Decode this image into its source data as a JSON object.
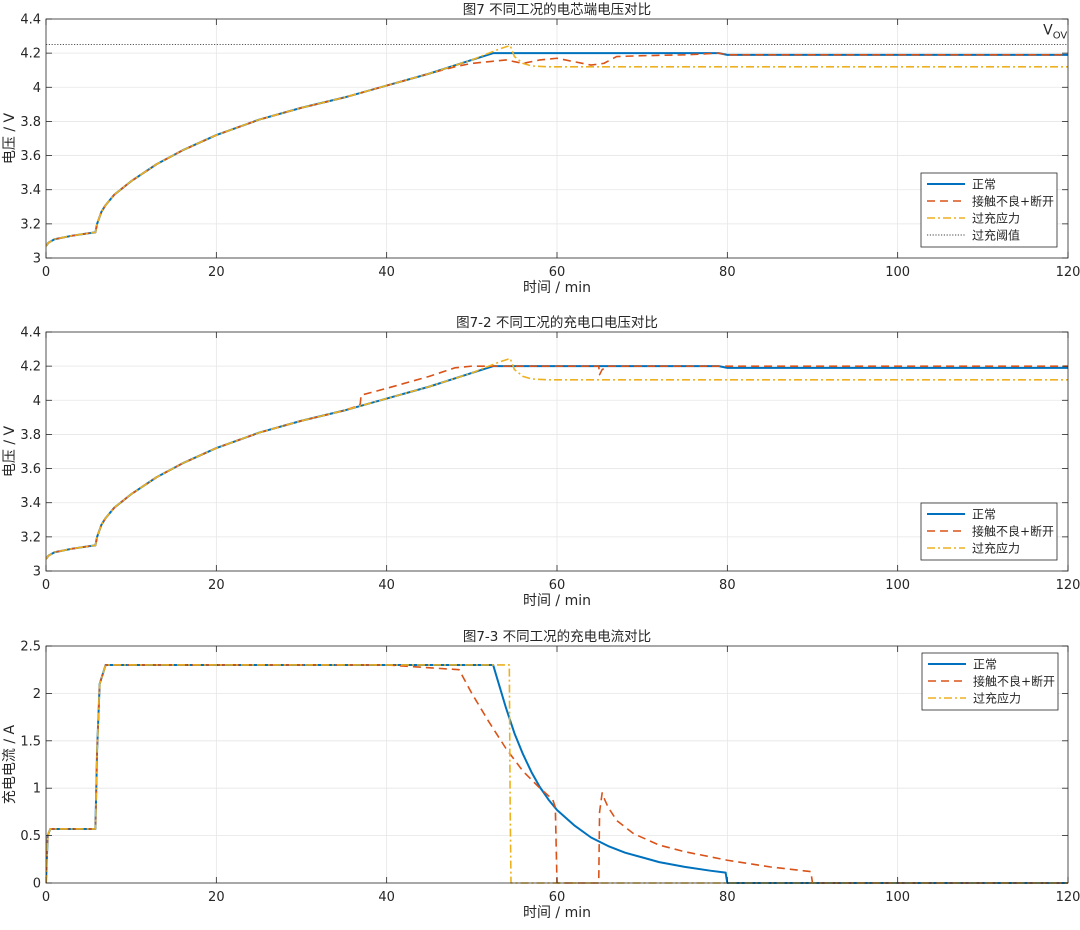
{
  "chart_data": [
    {
      "type": "line",
      "title": "图7 不同工况的电芯端电压对比",
      "xlabel": "时间 / min",
      "ylabel": "电压 / V",
      "xlim": [
        0,
        120
      ],
      "ylim": [
        3,
        4.4
      ],
      "xticks": [
        0,
        20,
        40,
        60,
        80,
        100,
        120
      ],
      "yticks": [
        3,
        3.2,
        3.4,
        3.6,
        3.8,
        4,
        4.2,
        4.4
      ],
      "ytick_labels": [
        "3",
        "3.2",
        "3.4",
        "3.6",
        "3.8",
        "4",
        "4.2",
        "4.4"
      ],
      "grid": true,
      "legend_position": "lower-right",
      "annotation": {
        "text_main": "V",
        "text_sub": "OV",
        "x": 118.5,
        "y": 4.31
      },
      "series": [
        {
          "name": "正常",
          "color": "#0072BD",
          "style": "solid",
          "x": [
            0,
            0.3,
            1,
            3,
            5,
            5.8,
            6,
            6.5,
            7,
            8,
            10,
            13,
            16,
            20,
            25,
            30,
            35,
            40,
            45,
            50,
            52.5,
            53,
            60,
            70,
            79,
            80,
            90,
            100,
            110,
            120
          ],
          "y": [
            3.07,
            3.09,
            3.11,
            3.13,
            3.145,
            3.15,
            3.2,
            3.27,
            3.31,
            3.37,
            3.45,
            3.55,
            3.63,
            3.72,
            3.81,
            3.88,
            3.94,
            4.01,
            4.08,
            4.16,
            4.2,
            4.2,
            4.2,
            4.2,
            4.2,
            4.19,
            4.19,
            4.19,
            4.19,
            4.19
          ]
        },
        {
          "name": "接触不良+断开",
          "color": "#D95319",
          "style": "dash",
          "x": [
            0,
            0.3,
            1,
            3,
            5,
            5.8,
            6,
            6.5,
            7,
            8,
            10,
            13,
            16,
            20,
            25,
            30,
            35,
            40,
            45,
            48,
            50,
            52,
            54,
            55,
            56,
            58,
            60,
            62,
            64,
            65.5,
            67,
            70,
            75,
            79,
            80,
            90,
            100,
            110,
            120
          ],
          "y": [
            3.07,
            3.09,
            3.11,
            3.13,
            3.145,
            3.15,
            3.2,
            3.27,
            3.31,
            3.37,
            3.45,
            3.55,
            3.63,
            3.72,
            3.81,
            3.88,
            3.94,
            4.01,
            4.08,
            4.12,
            4.14,
            4.15,
            4.16,
            4.15,
            4.14,
            4.16,
            4.17,
            4.15,
            4.13,
            4.14,
            4.18,
            4.185,
            4.19,
            4.2,
            4.19,
            4.19,
            4.19,
            4.19,
            4.19
          ]
        },
        {
          "name": "过充应力",
          "color": "#EDB120",
          "style": "dashdot",
          "x": [
            0,
            0.3,
            1,
            3,
            5,
            5.8,
            6,
            6.5,
            7,
            8,
            10,
            13,
            16,
            20,
            25,
            30,
            35,
            40,
            45,
            50,
            53,
            54.5,
            55,
            56,
            57,
            59,
            62,
            70,
            80,
            90,
            100,
            110,
            120
          ],
          "y": [
            3.07,
            3.09,
            3.11,
            3.13,
            3.145,
            3.15,
            3.2,
            3.27,
            3.31,
            3.37,
            3.45,
            3.55,
            3.63,
            3.72,
            3.81,
            3.88,
            3.94,
            4.01,
            4.08,
            4.16,
            4.22,
            4.245,
            4.18,
            4.14,
            4.125,
            4.12,
            4.12,
            4.12,
            4.12,
            4.12,
            4.12,
            4.12,
            4.12
          ]
        },
        {
          "name": "过充阈值",
          "color": "#404040",
          "style": "dot",
          "x": [
            0,
            120
          ],
          "y": [
            4.25,
            4.25
          ]
        }
      ]
    },
    {
      "type": "line",
      "title": "图7-2 不同工况的充电口电压对比",
      "xlabel": "时间 / min",
      "ylabel": "电压 / V",
      "xlim": [
        0,
        120
      ],
      "ylim": [
        3,
        4.4
      ],
      "xticks": [
        0,
        20,
        40,
        60,
        80,
        100,
        120
      ],
      "yticks": [
        3,
        3.2,
        3.4,
        3.6,
        3.8,
        4,
        4.2,
        4.4
      ],
      "ytick_labels": [
        "3",
        "3.2",
        "3.4",
        "3.6",
        "3.8",
        "4",
        "4.2",
        "4.4"
      ],
      "grid": true,
      "legend_position": "lower-right",
      "series": [
        {
          "name": "正常",
          "color": "#0072BD",
          "style": "solid",
          "x": [
            0,
            0.3,
            1,
            3,
            5,
            5.8,
            6,
            6.5,
            7,
            8,
            10,
            13,
            16,
            20,
            25,
            30,
            35,
            40,
            45,
            50,
            52.5,
            53,
            60,
            70,
            79,
            80,
            90,
            100,
            110,
            120
          ],
          "y": [
            3.07,
            3.09,
            3.11,
            3.13,
            3.145,
            3.15,
            3.2,
            3.27,
            3.31,
            3.37,
            3.45,
            3.55,
            3.63,
            3.72,
            3.81,
            3.88,
            3.94,
            4.01,
            4.08,
            4.16,
            4.2,
            4.2,
            4.2,
            4.2,
            4.2,
            4.19,
            4.19,
            4.19,
            4.19,
            4.19
          ]
        },
        {
          "name": "接触不良+断开",
          "color": "#D95319",
          "style": "dash",
          "x": [
            0,
            0.3,
            1,
            3,
            5,
            5.8,
            6,
            6.5,
            7,
            8,
            10,
            13,
            16,
            20,
            25,
            30,
            35,
            36.8,
            36.9,
            37,
            40,
            45,
            48,
            50,
            55,
            60,
            64.9,
            65,
            65.3,
            66,
            70,
            80,
            90,
            100,
            110,
            120
          ],
          "y": [
            3.07,
            3.09,
            3.11,
            3.13,
            3.145,
            3.15,
            3.2,
            3.27,
            3.31,
            3.37,
            3.45,
            3.55,
            3.63,
            3.72,
            3.81,
            3.88,
            3.94,
            3.97,
            3.98,
            4.03,
            4.07,
            4.14,
            4.19,
            4.2,
            4.2,
            4.2,
            4.2,
            4.15,
            4.18,
            4.2,
            4.2,
            4.2,
            4.2,
            4.2,
            4.2,
            4.2
          ]
        },
        {
          "name": "过充应力",
          "color": "#EDB120",
          "style": "dashdot",
          "x": [
            0,
            0.3,
            1,
            3,
            5,
            5.8,
            6,
            6.5,
            7,
            8,
            10,
            13,
            16,
            20,
            25,
            30,
            35,
            40,
            45,
            50,
            53,
            54.5,
            55,
            56,
            57,
            59,
            62,
            70,
            80,
            90,
            100,
            110,
            120
          ],
          "y": [
            3.07,
            3.09,
            3.11,
            3.13,
            3.145,
            3.15,
            3.2,
            3.27,
            3.31,
            3.37,
            3.45,
            3.55,
            3.63,
            3.72,
            3.81,
            3.88,
            3.94,
            4.01,
            4.08,
            4.16,
            4.22,
            4.245,
            4.18,
            4.14,
            4.125,
            4.12,
            4.12,
            4.12,
            4.12,
            4.12,
            4.12,
            4.12,
            4.12
          ]
        }
      ]
    },
    {
      "type": "line",
      "title": "图7-3 不同工况的充电电流对比",
      "xlabel": "时间 / min",
      "ylabel": "充电电流 / A",
      "xlim": [
        0,
        120
      ],
      "ylim": [
        0,
        2.5
      ],
      "xticks": [
        0,
        20,
        40,
        60,
        80,
        100,
        120
      ],
      "yticks": [
        0,
        0.5,
        1,
        1.5,
        2,
        2.5
      ],
      "ytick_labels": [
        "0",
        "0.5",
        "1",
        "1.5",
        "2",
        "2.5"
      ],
      "grid": true,
      "legend_position": "top-right",
      "series": [
        {
          "name": "正常",
          "color": "#0072BD",
          "style": "solid",
          "x": [
            0,
            0.2,
            0.5,
            1,
            3,
            5,
            5.8,
            6,
            6.3,
            7,
            10,
            20,
            30,
            40,
            50,
            52.5,
            53,
            54,
            55,
            56,
            57,
            58,
            59,
            60,
            62,
            64,
            66,
            68,
            70,
            72,
            75,
            78,
            79.8,
            79.9,
            80,
            90,
            100,
            110,
            120
          ],
          "y": [
            0,
            0.5,
            0.57,
            0.57,
            0.57,
            0.57,
            0.57,
            1.4,
            2.1,
            2.3,
            2.3,
            2.3,
            2.3,
            2.3,
            2.3,
            2.3,
            2.15,
            1.85,
            1.58,
            1.36,
            1.17,
            1.01,
            0.88,
            0.77,
            0.61,
            0.48,
            0.39,
            0.32,
            0.27,
            0.22,
            0.17,
            0.13,
            0.11,
            0.05,
            0,
            0,
            0,
            0,
            0
          ]
        },
        {
          "name": "接触不良+断开",
          "color": "#D95319",
          "style": "dash",
          "x": [
            0,
            0.2,
            0.5,
            1,
            3,
            5,
            5.8,
            6,
            6.3,
            7,
            10,
            20,
            30,
            40,
            48.5,
            50,
            52,
            54,
            56,
            58,
            59.5,
            59.8,
            60,
            62,
            64,
            64.9,
            65,
            65.3,
            65.6,
            66,
            67,
            69,
            72,
            75,
            80,
            85,
            89.8,
            90,
            100,
            110,
            120
          ],
          "y": [
            0,
            0.5,
            0.57,
            0.57,
            0.57,
            0.57,
            0.57,
            1.4,
            2.1,
            2.3,
            2.3,
            2.3,
            2.3,
            2.3,
            2.25,
            2.0,
            1.7,
            1.42,
            1.18,
            1.0,
            0.88,
            0.8,
            0,
            0,
            0,
            0,
            0.75,
            0.95,
            0.88,
            0.8,
            0.66,
            0.52,
            0.4,
            0.33,
            0.24,
            0.17,
            0.12,
            0,
            0,
            0,
            0
          ]
        },
        {
          "name": "过充应力",
          "color": "#EDB120",
          "style": "dashdot",
          "x": [
            0,
            0.2,
            0.5,
            1,
            3,
            5,
            5.8,
            6,
            6.3,
            7,
            10,
            20,
            30,
            40,
            50,
            54.4,
            54.5,
            54.6,
            60,
            70,
            80,
            90,
            100,
            110,
            120
          ],
          "y": [
            0,
            0.5,
            0.57,
            0.57,
            0.57,
            0.57,
            0.57,
            1.4,
            2.1,
            2.3,
            2.3,
            2.3,
            2.3,
            2.3,
            2.3,
            2.3,
            0.8,
            0,
            0,
            0,
            0,
            0,
            0,
            0,
            0
          ]
        }
      ]
    }
  ]
}
